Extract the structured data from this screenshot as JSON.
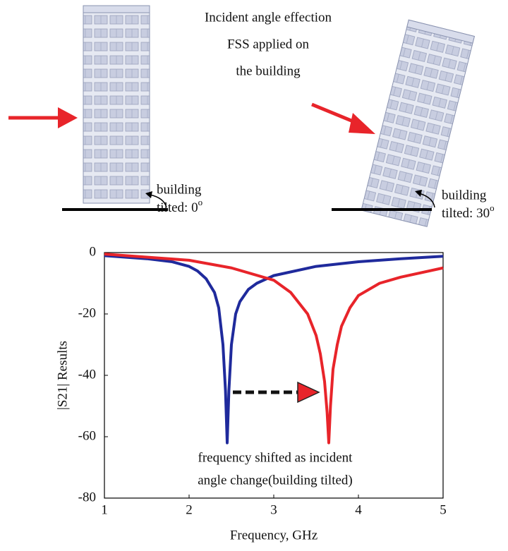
{
  "figure": {
    "caption": [
      "Incident angle effection",
      "FSS applied on",
      "the building"
    ],
    "label_left": {
      "line1": "building",
      "line2": "tilted: 0",
      "sup": "o"
    },
    "label_right": {
      "line1": "building",
      "line2": "tilted: 30",
      "sup": "o"
    }
  },
  "chart_data": {
    "type": "line",
    "xlabel": "Frequency, GHz",
    "ylabel": "|S21| Results",
    "annotation": [
      "frequency shifted as incident",
      "angle change(building tilted)"
    ],
    "xlim": [
      1,
      5
    ],
    "xticks": [
      1,
      2,
      3,
      4,
      5
    ],
    "ylim": [
      -80,
      0
    ],
    "yticks": [
      0,
      -20,
      -40,
      -60,
      -80
    ],
    "series": [
      {
        "color": "#1f2a9c",
        "x": [
          1,
          1.5,
          1.8,
          2,
          2.1,
          2.2,
          2.3,
          2.35,
          2.4,
          2.43,
          2.45,
          2.47,
          2.5,
          2.55,
          2.6,
          2.7,
          2.8,
          3,
          3.5,
          4,
          4.5,
          5
        ],
        "values": [
          -1,
          -2,
          -3,
          -4.5,
          -6,
          -8.5,
          -13,
          -18,
          -30,
          -45,
          -62,
          -45,
          -30,
          -20,
          -16,
          -12,
          -10,
          -7.5,
          -4.5,
          -3,
          -2,
          -1.2
        ]
      },
      {
        "color": "#e8242a",
        "x": [
          1,
          1.5,
          2,
          2.5,
          3,
          3.2,
          3.4,
          3.5,
          3.55,
          3.6,
          3.63,
          3.65,
          3.67,
          3.7,
          3.75,
          3.8,
          3.9,
          4,
          4.25,
          4.5,
          5
        ],
        "values": [
          -0.5,
          -1.5,
          -2.5,
          -5,
          -9,
          -13,
          -20,
          -27,
          -33,
          -42,
          -52,
          -62,
          -50,
          -38,
          -30,
          -24,
          -18,
          -14,
          -10,
          -8,
          -5
        ]
      }
    ]
  }
}
